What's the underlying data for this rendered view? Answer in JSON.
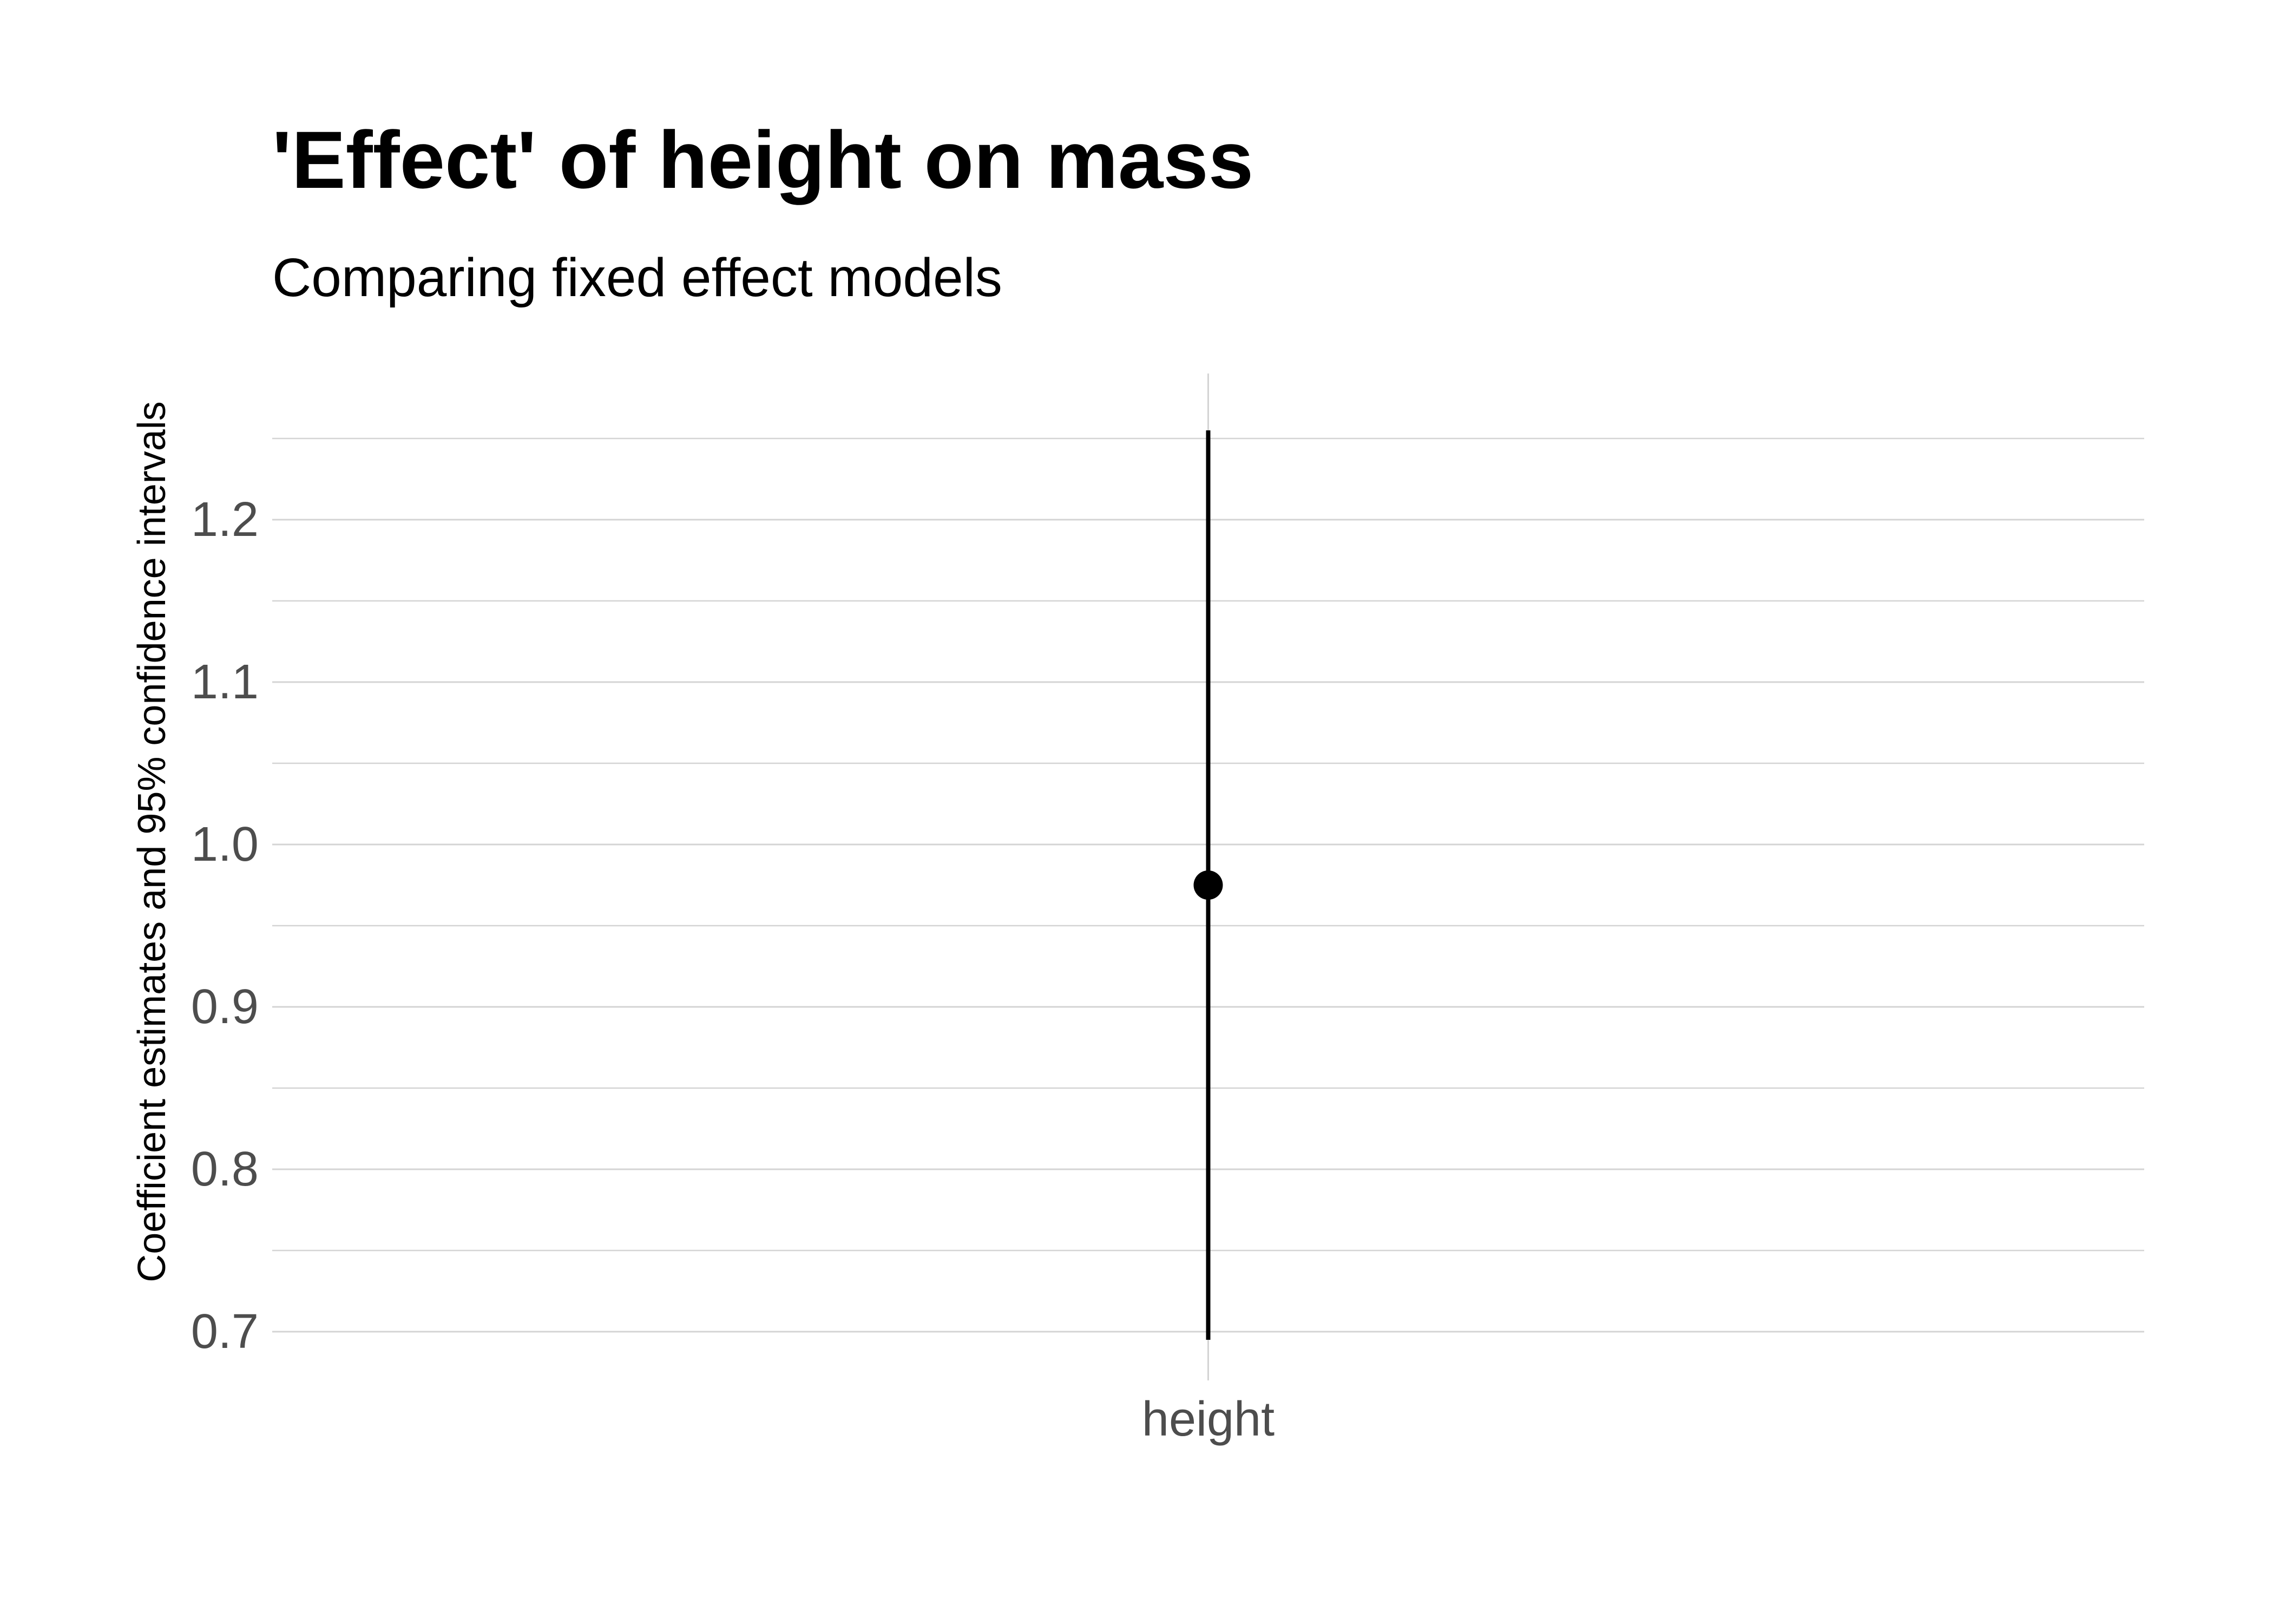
{
  "chart_data": {
    "type": "pointrange",
    "title": "'Effect' of height on mass",
    "subtitle": "Comparing fixed effect models",
    "xlabel": "",
    "ylabel": "Coefficient estimates and 95% confidence intervals",
    "categories": [
      "height"
    ],
    "estimates": [
      0.975
    ],
    "conf_low": [
      0.695
    ],
    "conf_high": [
      1.255
    ],
    "ylim": [
      0.67,
      1.29
    ],
    "yticks": [
      0.7,
      0.8,
      0.9,
      1.0,
      1.1,
      1.2
    ],
    "ytick_labels": [
      "0.7",
      "0.8",
      "0.9",
      "1.0",
      "1.1",
      "1.2"
    ],
    "grid": true,
    "legend": "none",
    "colors": {
      "point": "#000000",
      "interval": "#000000",
      "grid": "#d4d4d4",
      "tick_text": "#4d4d4d"
    }
  }
}
